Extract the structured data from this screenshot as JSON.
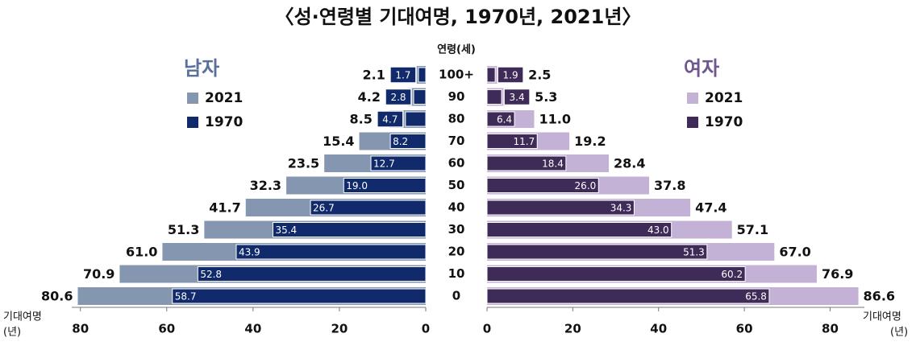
{
  "title": "〈성·연령별 기대여명, 1970년, 2021년〉",
  "category_header": "연령(세)",
  "categories": [
    "100+",
    "90",
    "80",
    "70",
    "60",
    "50",
    "40",
    "30",
    "20",
    "10",
    "0"
  ],
  "chart_data": [
    {
      "type": "bar",
      "orientation": "horizontal",
      "x_reversed": true,
      "title": "남자",
      "title_color": "#5b6f9c",
      "x_label": "기대여명",
      "x_unit": "(년)",
      "xlim": [
        0,
        82
      ],
      "xticks": [
        0,
        20,
        40,
        60,
        80
      ],
      "series": [
        {
          "name": "2021",
          "color": "#8496b0",
          "values": [
            2.1,
            4.2,
            8.5,
            15.4,
            23.5,
            32.3,
            41.7,
            51.3,
            61.0,
            70.9,
            80.6
          ],
          "value_labels": [
            "2.1",
            "4.2",
            "8.5",
            "15.4",
            "23.5",
            "32.3",
            "41.7",
            "51.3",
            "61.0",
            "70.9",
            "80.6"
          ]
        },
        {
          "name": "1970",
          "color": "#102a6c",
          "values": [
            1.7,
            2.8,
            4.7,
            8.2,
            12.7,
            19.0,
            26.7,
            35.4,
            43.9,
            52.8,
            58.7
          ],
          "value_labels": [
            "1.7",
            "2.8",
            "4.7",
            "8.2",
            "12.7",
            "19.0",
            "26.7",
            "35.4",
            "43.9",
            "52.8",
            "58.7"
          ]
        }
      ]
    },
    {
      "type": "bar",
      "orientation": "horizontal",
      "x_reversed": false,
      "title": "여자",
      "title_color": "#6e5690",
      "x_label": "기대여명",
      "x_unit": "(년)",
      "xlim": [
        0,
        88
      ],
      "xticks": [
        0,
        20,
        40,
        60,
        80
      ],
      "series": [
        {
          "name": "2021",
          "color": "#c4b2d6",
          "values": [
            2.5,
            5.3,
            11.0,
            19.2,
            28.4,
            37.8,
            47.4,
            57.1,
            67.0,
            76.9,
            86.6
          ],
          "value_labels": [
            "2.5",
            "5.3",
            "11.0",
            "19.2",
            "28.4",
            "37.8",
            "47.4",
            "57.1",
            "67.0",
            "76.9",
            "86.6"
          ]
        },
        {
          "name": "1970",
          "color": "#3f2b57",
          "values": [
            1.9,
            3.4,
            6.4,
            11.7,
            18.4,
            26.0,
            34.3,
            43.0,
            51.3,
            60.2,
            65.8
          ],
          "value_labels": [
            "1.9",
            "3.4",
            "6.4",
            "11.7",
            "18.4",
            "26.0",
            "34.3",
            "43.0",
            "51.3",
            "60.2",
            "65.8"
          ]
        }
      ]
    }
  ]
}
